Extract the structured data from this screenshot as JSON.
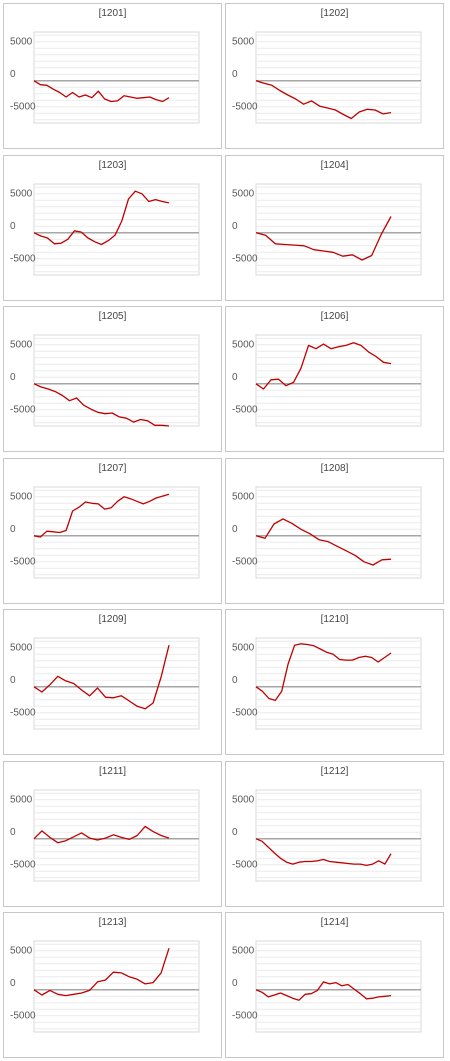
{
  "chart_data": [
    {
      "type": "line",
      "title": "[1201]",
      "ylim": [
        -6500,
        7500
      ],
      "ytick_labels": [
        "5000",
        "0",
        "-5000"
      ],
      "yticks": [
        5000,
        0,
        -5000
      ],
      "grid": true,
      "line_color": "#c00000",
      "zero_line_color": "#a6a6a6",
      "values": [
        0,
        -600,
        -700,
        -1300,
        -1800,
        -2500,
        -1800,
        -2500,
        -2200,
        -2600,
        -1600,
        -2800,
        -3200,
        -3100,
        -2300,
        -2500,
        -2700,
        -2600,
        -2500,
        -2900,
        -3200,
        -2600
      ]
    },
    {
      "type": "line",
      "title": "[1202]",
      "ylim": [
        -6500,
        7500
      ],
      "ytick_labels": [
        "5000",
        "0",
        "-5000"
      ],
      "yticks": [
        5000,
        0,
        -5000
      ],
      "grid": true,
      "line_color": "#c00000",
      "zero_line_color": "#a6a6a6",
      "values": [
        0,
        -400,
        -700,
        -1500,
        -2200,
        -2800,
        -3600,
        -3100,
        -3900,
        -4200,
        -4500,
        -5200,
        -5800,
        -4800,
        -4400,
        -4500,
        -5100,
        -4900
      ]
    },
    {
      "type": "line",
      "title": "[1203]",
      "ylim": [
        -6500,
        7500
      ],
      "ytick_labels": [
        "5000",
        "0",
        "-5000"
      ],
      "yticks": [
        5000,
        0,
        -5000
      ],
      "grid": true,
      "line_color": "#c00000",
      "zero_line_color": "#a6a6a6",
      "values": [
        0,
        -500,
        -800,
        -1700,
        -1600,
        -1000,
        300,
        100,
        -800,
        -1400,
        -1800,
        -1200,
        -400,
        1800,
        5200,
        6400,
        6000,
        4800,
        5100,
        4800,
        4600
      ]
    },
    {
      "type": "line",
      "title": "[1204]",
      "ylim": [
        -6500,
        7500
      ],
      "ytick_labels": [
        "5000",
        "0",
        "-5000"
      ],
      "yticks": [
        5000,
        0,
        -5000
      ],
      "grid": true,
      "line_color": "#c00000",
      "zero_line_color": "#a6a6a6",
      "values": [
        0,
        -400,
        -1700,
        -1800,
        -1900,
        -2000,
        -2600,
        -2800,
        -3000,
        -3600,
        -3400,
        -4200,
        -3500,
        -200,
        2500
      ]
    },
    {
      "type": "line",
      "title": "[1205]",
      "ylim": [
        -6500,
        7500
      ],
      "ytick_labels": [
        "5000",
        "0",
        "-5000"
      ],
      "yticks": [
        5000,
        0,
        -5000
      ],
      "grid": true,
      "line_color": "#c00000",
      "zero_line_color": "#a6a6a6",
      "values": [
        0,
        -500,
        -800,
        -1200,
        -1800,
        -2600,
        -2200,
        -3300,
        -3900,
        -4400,
        -4600,
        -4500,
        -5100,
        -5300,
        -5900,
        -5500,
        -5700,
        -6400,
        -6400,
        -6500
      ]
    },
    {
      "type": "line",
      "title": "[1206]",
      "ylim": [
        -6500,
        7500
      ],
      "ytick_labels": [
        "5000",
        "0",
        "-5000"
      ],
      "yticks": [
        5000,
        0,
        -5000
      ],
      "grid": true,
      "line_color": "#c00000",
      "zero_line_color": "#a6a6a6",
      "values": [
        0,
        -800,
        600,
        700,
        -300,
        200,
        2400,
        5900,
        5400,
        6100,
        5400,
        5700,
        5900,
        6300,
        5900,
        4900,
        4200,
        3300,
        3100
      ]
    },
    {
      "type": "line",
      "title": "[1207]",
      "ylim": [
        -6500,
        7500
      ],
      "ytick_labels": [
        "5000",
        "0",
        "-5000"
      ],
      "yticks": [
        5000,
        0,
        -5000
      ],
      "grid": true,
      "line_color": "#c00000",
      "zero_line_color": "#a6a6a6",
      "values": [
        0,
        -200,
        700,
        600,
        500,
        800,
        3800,
        4400,
        5200,
        5000,
        4900,
        4100,
        4300,
        5300,
        6000,
        5700,
        5300,
        4900,
        5300,
        5800,
        6100,
        6400
      ]
    },
    {
      "type": "line",
      "title": "[1208]",
      "ylim": [
        -6500,
        7500
      ],
      "ytick_labels": [
        "5000",
        "0",
        "-5000"
      ],
      "yticks": [
        5000,
        0,
        -5000
      ],
      "grid": true,
      "line_color": "#c00000",
      "zero_line_color": "#a6a6a6",
      "values": [
        0,
        -400,
        1800,
        2600,
        1900,
        1000,
        300,
        -600,
        -900,
        -1600,
        -2300,
        -3000,
        -4000,
        -4500,
        -3700,
        -3600
      ]
    },
    {
      "type": "line",
      "title": "[1209]",
      "ylim": [
        -6500,
        7500
      ],
      "ytick_labels": [
        "5000",
        "0",
        "-5000"
      ],
      "yticks": [
        5000,
        0,
        -5000
      ],
      "grid": true,
      "line_color": "#c00000",
      "zero_line_color": "#a6a6a6",
      "values": [
        0,
        -800,
        300,
        1600,
        900,
        500,
        -500,
        -1400,
        -200,
        -1600,
        -1700,
        -1400,
        -2200,
        -3000,
        -3400,
        -2500,
        1500,
        6400
      ]
    },
    {
      "type": "line",
      "title": "[1210]",
      "ylim": [
        -6500,
        7500
      ],
      "ytick_labels": [
        "5000",
        "0",
        "-5000"
      ],
      "yticks": [
        5000,
        0,
        -5000
      ],
      "grid": true,
      "line_color": "#c00000",
      "zero_line_color": "#a6a6a6",
      "values": [
        0,
        -700,
        -1800,
        -2100,
        -700,
        3500,
        6400,
        6600,
        6500,
        6300,
        5800,
        5300,
        5000,
        4200,
        4100,
        4100,
        4500,
        4700,
        4500,
        3800,
        4500,
        5200
      ]
    },
    {
      "type": "line",
      "title": "[1211]",
      "ylim": [
        -6500,
        7500
      ],
      "ytick_labels": [
        "5000",
        "0",
        "-5000"
      ],
      "yticks": [
        5000,
        0,
        -5000
      ],
      "grid": true,
      "line_color": "#c00000",
      "zero_line_color": "#a6a6a6",
      "values": [
        0,
        1200,
        200,
        -600,
        -300,
        300,
        900,
        100,
        -200,
        100,
        600,
        200,
        -100,
        500,
        1900,
        1100,
        500,
        100
      ]
    },
    {
      "type": "line",
      "title": "[1212]",
      "ylim": [
        -6500,
        7500
      ],
      "ytick_labels": [
        "5000",
        "0",
        "-5000"
      ],
      "yticks": [
        5000,
        0,
        -5000
      ],
      "grid": true,
      "line_color": "#c00000",
      "zero_line_color": "#a6a6a6",
      "values": [
        0,
        -400,
        -1300,
        -2200,
        -3000,
        -3600,
        -3900,
        -3600,
        -3500,
        -3500,
        -3400,
        -3200,
        -3500,
        -3600,
        -3700,
        -3800,
        -3900,
        -3900,
        -4100,
        -3900,
        -3400,
        -3900,
        -2300
      ]
    },
    {
      "type": "line",
      "title": "[1213]",
      "ylim": [
        -6500,
        7500
      ],
      "ytick_labels": [
        "5000",
        "0",
        "-5000"
      ],
      "yticks": [
        5000,
        0,
        -5000
      ],
      "grid": true,
      "line_color": "#c00000",
      "zero_line_color": "#a6a6a6",
      "values": [
        0,
        -800,
        -100,
        -700,
        -900,
        -700,
        -500,
        -100,
        1200,
        1500,
        2700,
        2600,
        2000,
        1600,
        900,
        1100,
        2600,
        6400
      ]
    },
    {
      "type": "line",
      "title": "[1214]",
      "ylim": [
        -6500,
        7500
      ],
      "ytick_labels": [
        "5000",
        "0",
        "-5000"
      ],
      "yticks": [
        5000,
        0,
        -5000
      ],
      "grid": true,
      "line_color": "#c00000",
      "zero_line_color": "#a6a6a6",
      "values": [
        0,
        -400,
        -1100,
        -800,
        -500,
        -900,
        -1300,
        -1600,
        -700,
        -600,
        -100,
        1200,
        900,
        1100,
        600,
        800,
        100,
        -600,
        -1400,
        -1300,
        -1100,
        -1000,
        -900
      ]
    }
  ]
}
